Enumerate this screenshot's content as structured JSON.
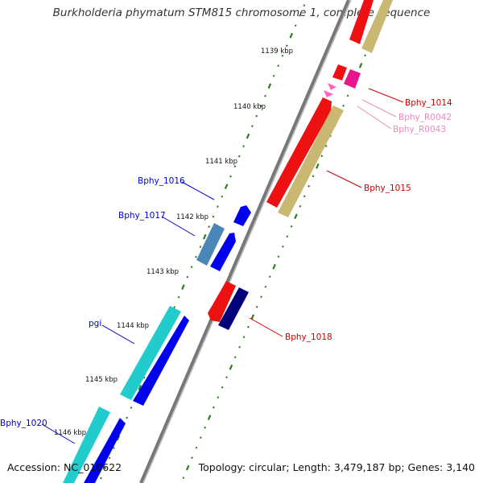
{
  "title": "Burkholderia phymatum STM815 chromosome 1, complete sequence",
  "accession": "Accession: NC_010622",
  "topology": "Topology: circular; Length: 3,479,187 bp; Genes: 3,140",
  "ticks": [
    "1139 kbp",
    "1140 kbp",
    "1141 kbp",
    "1142 kbp",
    "1143 kbp",
    "1144 kbp",
    "1145 kbp",
    "1146 kbp"
  ],
  "genes": [
    {
      "label": "Bphy_1014",
      "color": "#cc0000"
    },
    {
      "label": "Bphy_R0042",
      "color": "#ee88bb"
    },
    {
      "label": "Bphy_R0043",
      "color": "#ee88bb"
    },
    {
      "label": "Bphy_1015",
      "color": "#cc0000"
    },
    {
      "label": "Bphy_1016",
      "color": "#0000cc"
    },
    {
      "label": "Bphy_1017",
      "color": "#0000cc"
    },
    {
      "label": "Bphy_1018",
      "color": "#cc0000"
    },
    {
      "label": "pgi",
      "color": "#0000cc"
    },
    {
      "label": "Bphy_1020",
      "color": "#0000cc"
    }
  ],
  "colors": {
    "backbone": "#888888",
    "tick_dots": "#2e7d1e",
    "red": "#ee1111",
    "tan": "#c8b872",
    "blue": "#0000ee",
    "steel": "#4a86b8",
    "navy": "#00007a",
    "cyan": "#22cccc",
    "pink": "#ff66bb",
    "magenta": "#e8158c"
  }
}
